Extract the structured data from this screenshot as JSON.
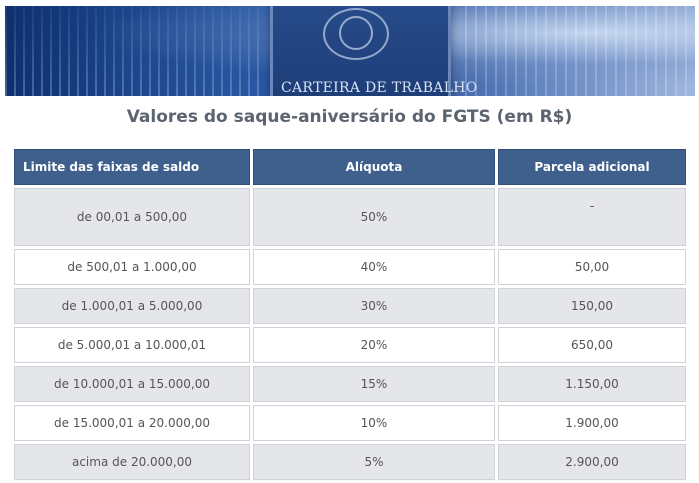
{
  "banner": {
    "card_title": "CARTEIRA DE TRABALHO"
  },
  "title": "Valores do saque-aniversário do FGTS (em R$)",
  "table": {
    "headers": [
      "Limite das faixas de saldo",
      "Alíquota",
      "Parcela adicional"
    ],
    "rows": [
      [
        "de 00,01 a 500,00",
        "50%",
        "-"
      ],
      [
        "de 500,01 a 1.000,00",
        "40%",
        "50,00"
      ],
      [
        "de 1.000,01 a 5.000,00",
        "30%",
        "150,00"
      ],
      [
        "de 5.000,01 a 10.000,01",
        "20%",
        "650,00"
      ],
      [
        "de 10.000,01 a 15.000,00",
        "15%",
        "1.150,00"
      ],
      [
        "de 15.000,01 a 20.000,00",
        "10%",
        "1.900,00"
      ],
      [
        "acima de 20.000,00",
        "5%",
        "2.900,00"
      ]
    ]
  },
  "colors": {
    "header_bg": "#3f5f8c",
    "row_alt_bg": "#e4e6e9",
    "title_color": "#5b6470"
  }
}
